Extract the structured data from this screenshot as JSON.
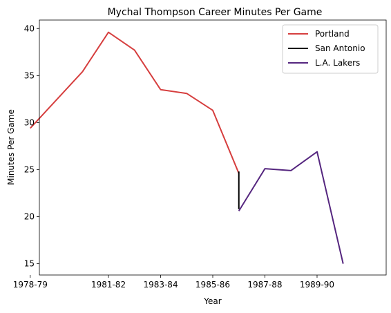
{
  "chart_data": {
    "type": "line",
    "title": "Mychal Thompson Career Minutes Per Game",
    "xlabel": "Year",
    "ylabel": "Minutes Per Game",
    "xlim": [
      1978.35,
      1991.65
    ],
    "ylim": [
      13.8,
      40.9
    ],
    "x_ticks": [
      {
        "x": 1978,
        "label": "1978-79"
      },
      {
        "x": 1981,
        "label": "1981-82"
      },
      {
        "x": 1983,
        "label": "1983-84"
      },
      {
        "x": 1985,
        "label": "1985-86"
      },
      {
        "x": 1987,
        "label": "1987-88"
      },
      {
        "x": 1989,
        "label": "1989-90"
      }
    ],
    "y_ticks": [
      15,
      20,
      25,
      30,
      35,
      40
    ],
    "grid": false,
    "legend_position": "top-right",
    "series": [
      {
        "name": "Portland",
        "color": "#d63e3e",
        "points": [
          {
            "x": 1978,
            "y": 29.4
          },
          {
            "x": 1980,
            "y": 35.4
          },
          {
            "x": 1981,
            "y": 39.6
          },
          {
            "x": 1982,
            "y": 37.7
          },
          {
            "x": 1983,
            "y": 33.5
          },
          {
            "x": 1984,
            "y": 33.1
          },
          {
            "x": 1985,
            "y": 31.3
          },
          {
            "x": 1986,
            "y": 24.6
          }
        ]
      },
      {
        "name": "San Antonio",
        "color": "#000000",
        "points": [
          {
            "x": 1986,
            "y": 24.8
          },
          {
            "x": 1986,
            "y": 20.8
          }
        ]
      },
      {
        "name": "L.A. Lakers",
        "color": "#55267f",
        "points": [
          {
            "x": 1986,
            "y": 20.6
          },
          {
            "x": 1987,
            "y": 25.1
          },
          {
            "x": 1988,
            "y": 24.9
          },
          {
            "x": 1989,
            "y": 26.9
          },
          {
            "x": 1990,
            "y": 15.0
          }
        ]
      }
    ]
  }
}
